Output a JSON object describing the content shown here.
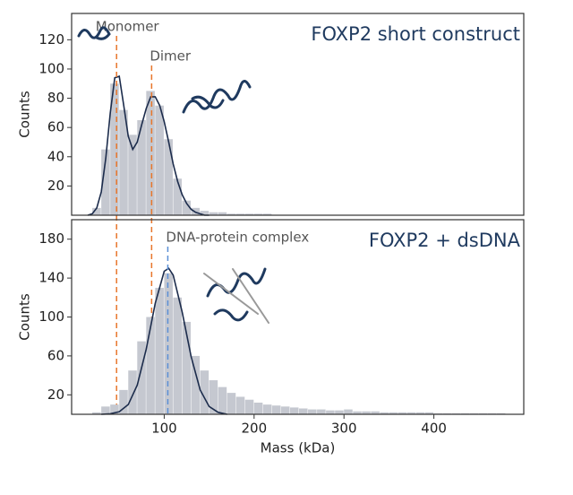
{
  "chart_data": [
    {
      "type": "histogram",
      "title": "FOXP2 short construct",
      "y_label": "Counts",
      "bins": [
        20,
        30,
        40,
        50,
        60,
        70,
        80,
        90,
        100,
        110,
        120,
        130,
        140,
        150,
        160,
        170,
        180,
        190,
        200,
        210,
        220,
        230,
        240
      ],
      "counts": [
        5,
        45,
        90,
        72,
        55,
        65,
        85,
        75,
        52,
        25,
        10,
        5,
        3,
        2,
        2,
        1,
        1,
        1,
        1,
        1,
        0,
        0
      ],
      "color": "#c5c8d0",
      "fit": {
        "color": "#1c2c4c",
        "x": [
          15,
          20,
          25,
          30,
          35,
          40,
          45,
          50,
          55,
          60,
          65,
          70,
          75,
          80,
          85,
          90,
          95,
          100,
          105,
          110,
          115,
          120,
          125,
          130,
          135,
          140,
          145,
          150
        ],
        "values": [
          0,
          1,
          5,
          16,
          39,
          70,
          94,
          95,
          75,
          54,
          45,
          50,
          62,
          73,
          81,
          81,
          75,
          64,
          50,
          35,
          23,
          14,
          8,
          4,
          2,
          1,
          0,
          0
        ]
      },
      "markers": [
        {
          "label": "Monomer",
          "x": 47,
          "color": "#e8762b"
        },
        {
          "label": "Dimer",
          "x": 86,
          "color": "#e8762b"
        }
      ],
      "xlim": [
        -3,
        500
      ],
      "ylim": [
        0,
        138
      ],
      "yticks": [
        20,
        40,
        60,
        80,
        100,
        120
      ]
    },
    {
      "type": "histogram",
      "title": "FOXP2 + dsDNA",
      "y_label": "Counts",
      "x_label": "Mass (kDa)",
      "bins": [
        20,
        30,
        40,
        50,
        60,
        70,
        80,
        90,
        100,
        110,
        120,
        130,
        140,
        150,
        160,
        170,
        180,
        190,
        200,
        210,
        220,
        230,
        240,
        250,
        260,
        270,
        280,
        290,
        300,
        310,
        320,
        330,
        340,
        350,
        360,
        370,
        380,
        390,
        400,
        410,
        420,
        430,
        440,
        450,
        460,
        470,
        480
      ],
      "counts": [
        2,
        8,
        10,
        25,
        45,
        75,
        100,
        130,
        145,
        120,
        95,
        60,
        45,
        35,
        28,
        22,
        18,
        15,
        12,
        10,
        9,
        8,
        7,
        6,
        5,
        5,
        4,
        4,
        5,
        3,
        3,
        3,
        2,
        2,
        2,
        2,
        2,
        2,
        1,
        1,
        1,
        1,
        1,
        1,
        1,
        1
      ],
      "color": "#c5c8d0",
      "fit": {
        "color": "#1c2c4c",
        "x": [
          30,
          40,
          50,
          60,
          70,
          80,
          90,
          100,
          105,
          110,
          120,
          130,
          140,
          150,
          160,
          170
        ],
        "values": [
          0,
          0.5,
          2.6,
          10,
          30,
          67,
          114,
          147,
          150,
          143,
          105,
          59,
          25,
          8,
          2,
          0
        ]
      },
      "markers": [
        {
          "label": "DNA-protein complex",
          "x": 104,
          "color": "#5b8fd6"
        }
      ],
      "xlim": [
        -3,
        500
      ],
      "xticks": [
        100,
        200,
        300,
        400
      ],
      "ylim": [
        0,
        200
      ],
      "yticks": [
        20,
        60,
        100,
        140,
        180
      ]
    }
  ]
}
